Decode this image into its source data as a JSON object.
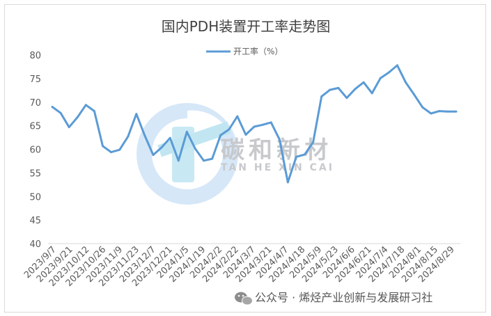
{
  "chart_data": {
    "type": "line",
    "title": "国内PDH装置开工率走势图",
    "xlabel": "",
    "ylabel": "",
    "ylim": [
      40,
      80
    ],
    "yticks": [
      "40",
      "45",
      "50",
      "55",
      "60",
      "65",
      "70",
      "75",
      "80"
    ],
    "grid": false,
    "legend_position": "top-center",
    "color": "#5b9bd5",
    "x_tick_labels": [
      "2023/9/7",
      "2023/9/21",
      "2023/10/12",
      "2023/10/26",
      "2023/11/9",
      "2023/11/23",
      "2023/12/7",
      "2023/12/21",
      "2024/1/5",
      "2024/1/19",
      "2024/2/2",
      "2024/2/22",
      "2024/3/7",
      "2024/3/21",
      "2024/4/7",
      "2024/4/18",
      "2024/5/9",
      "2024/5/23",
      "2024/6/6",
      "2024/6/21",
      "2024/7/4",
      "2024/7/18",
      "2024/8/1",
      "2024/8/15",
      "2024/8/29"
    ],
    "series": [
      {
        "name": "开工率（%）",
        "values": [
          69,
          67.7,
          64.7,
          66.8,
          69.4,
          68.1,
          60.7,
          59.4,
          59.9,
          62.7,
          67.5,
          62.9,
          58.8,
          60.4,
          62.4,
          57.6,
          63.7,
          60.1,
          57.6,
          58,
          63,
          64.2,
          67,
          63.1,
          64.8,
          65.2,
          65.7,
          62.1,
          53,
          58.4,
          58.9,
          61.5,
          71.2,
          72.6,
          73,
          70.9,
          72.8,
          74.2,
          71.9,
          75.1,
          76.3,
          77.8,
          74.2,
          71.6,
          68.9,
          67.6,
          68.1,
          68,
          68
        ]
      }
    ]
  },
  "watermark": {
    "cn": "碳和新材",
    "en": "TAN HE XIN CAI"
  },
  "credit": {
    "text": "公众号 · 烯烃产业创新与发展研习社"
  }
}
